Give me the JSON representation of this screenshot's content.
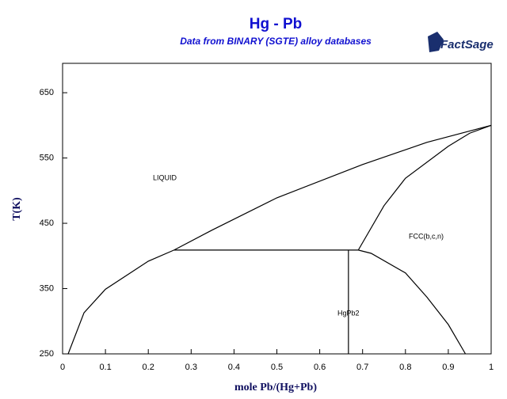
{
  "chart_data": {
    "type": "line",
    "title": "Hg - Pb",
    "subtitle": "Data from BINARY (SGTE) alloy databases",
    "logo": "FactSage",
    "x_label": "mole Pb/(Hg+Pb)",
    "y_label": "T(K)",
    "xlim": [
      0,
      1
    ],
    "ylim": [
      250,
      695
    ],
    "xticks": [
      0,
      0.1,
      0.2,
      0.3,
      0.4,
      0.5,
      0.6,
      0.7,
      0.8,
      0.9,
      1
    ],
    "yticks": [
      250,
      350,
      450,
      550,
      650
    ],
    "annotations": [
      "LIQUID",
      "FCC(b,c,n)",
      "HgPb2"
    ],
    "series": [
      {
        "color": "#000000",
        "x": [
          0.013,
          0.05,
          0.1,
          0.2,
          0.26
        ],
        "values": [
          250,
          313,
          349,
          392,
          409
        ]
      },
      {
        "color": "#000000",
        "x": [
          0.26,
          0.35,
          0.5,
          0.7,
          0.85,
          1
        ],
        "values": [
          409,
          440,
          489,
          540,
          574,
          600
        ]
      },
      {
        "color": "#000000",
        "x": [
          0.26,
          0.69
        ],
        "values": [
          409,
          409
        ]
      },
      {
        "color": "#000000",
        "x": [
          0.69,
          0.75,
          0.8,
          0.9,
          0.95,
          1
        ],
        "values": [
          409,
          477,
          519,
          568,
          588,
          600
        ]
      },
      {
        "color": "#000000",
        "x": [
          0.69,
          0.72,
          0.8,
          0.85,
          0.9,
          0.94
        ],
        "values": [
          409,
          404,
          374,
          337,
          295,
          250
        ]
      },
      {
        "color": "#000000",
        "x": [
          0.667,
          0.667
        ],
        "values": [
          250,
          409
        ]
      }
    ]
  }
}
